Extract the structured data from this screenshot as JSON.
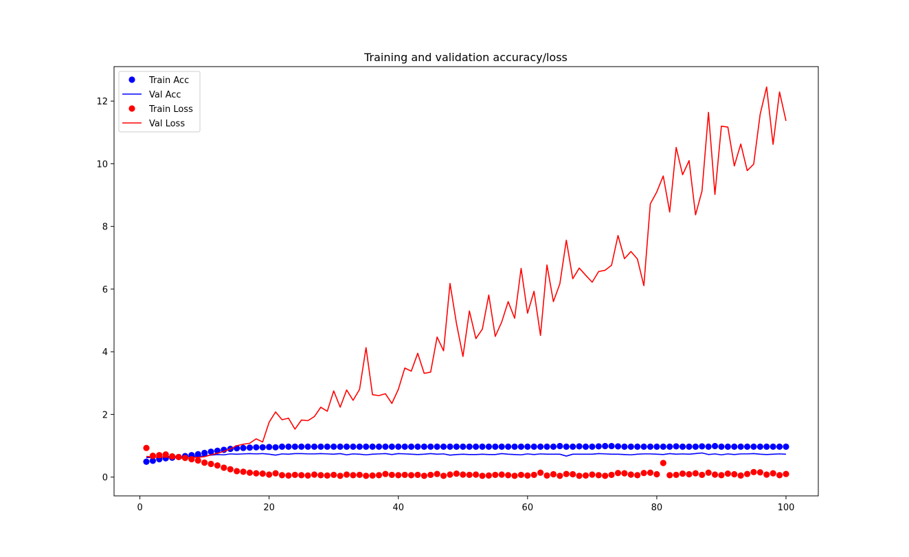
{
  "chart_data": {
    "type": "line",
    "title": "Training and validation accuracy/loss",
    "xlabel": "",
    "ylabel": "",
    "xlim": [
      -4,
      105
    ],
    "ylim": [
      -0.6,
      13.1
    ],
    "xticks": [
      0,
      20,
      40,
      60,
      80,
      100
    ],
    "yticks": [
      0,
      2,
      4,
      6,
      8,
      10,
      12
    ],
    "grid": false,
    "legend_position": "top-left",
    "colors": {
      "blue": "#0000ff",
      "red": "#ff0000"
    },
    "series": [
      {
        "name": "Train Acc",
        "style": "markers",
        "color": "#0000ff",
        "x": [
          1,
          2,
          3,
          4,
          5,
          6,
          7,
          8,
          9,
          10,
          11,
          12,
          13,
          14,
          15,
          16,
          17,
          18,
          19,
          20,
          21,
          22,
          23,
          24,
          25,
          26,
          27,
          28,
          29,
          30,
          31,
          32,
          33,
          34,
          35,
          36,
          37,
          38,
          39,
          40,
          41,
          42,
          43,
          44,
          45,
          46,
          47,
          48,
          49,
          50,
          51,
          52,
          53,
          54,
          55,
          56,
          57,
          58,
          59,
          60,
          61,
          62,
          63,
          64,
          65,
          66,
          67,
          68,
          69,
          70,
          71,
          72,
          73,
          74,
          75,
          76,
          77,
          78,
          79,
          80,
          81,
          82,
          83,
          84,
          85,
          86,
          87,
          88,
          89,
          90,
          91,
          92,
          93,
          94,
          95,
          96,
          97,
          98,
          99,
          100
        ],
        "y": [
          0.49,
          0.52,
          0.57,
          0.6,
          0.62,
          0.64,
          0.67,
          0.7,
          0.73,
          0.77,
          0.81,
          0.84,
          0.87,
          0.9,
          0.92,
          0.93,
          0.94,
          0.95,
          0.95,
          0.96,
          0.95,
          0.97,
          0.97,
          0.97,
          0.97,
          0.97,
          0.97,
          0.97,
          0.97,
          0.97,
          0.97,
          0.97,
          0.97,
          0.97,
          0.97,
          0.97,
          0.97,
          0.97,
          0.97,
          0.97,
          0.97,
          0.97,
          0.97,
          0.97,
          0.97,
          0.97,
          0.97,
          0.97,
          0.97,
          0.97,
          0.97,
          0.97,
          0.97,
          0.97,
          0.97,
          0.97,
          0.97,
          0.97,
          0.97,
          0.97,
          0.97,
          0.97,
          0.97,
          0.97,
          0.99,
          0.97,
          0.97,
          0.98,
          0.97,
          0.97,
          0.98,
          0.99,
          0.99,
          0.98,
          0.97,
          0.97,
          0.97,
          0.97,
          0.97,
          0.97,
          0.97,
          0.97,
          0.98,
          0.97,
          0.97,
          0.97,
          0.98,
          0.97,
          0.99,
          0.97,
          0.97,
          0.97,
          0.97,
          0.97,
          0.97,
          0.97,
          0.97,
          0.97,
          0.97,
          0.97
        ]
      },
      {
        "name": "Val Acc",
        "style": "line",
        "color": "#0000ff",
        "x": [
          1,
          2,
          3,
          4,
          5,
          6,
          7,
          8,
          9,
          10,
          11,
          12,
          13,
          14,
          15,
          16,
          17,
          18,
          19,
          20,
          21,
          22,
          23,
          24,
          25,
          26,
          27,
          28,
          29,
          30,
          31,
          32,
          33,
          34,
          35,
          36,
          37,
          38,
          39,
          40,
          41,
          42,
          43,
          44,
          45,
          46,
          47,
          48,
          49,
          50,
          51,
          52,
          53,
          54,
          55,
          56,
          57,
          58,
          59,
          60,
          61,
          62,
          63,
          64,
          65,
          66,
          67,
          68,
          69,
          70,
          71,
          72,
          73,
          74,
          75,
          76,
          77,
          78,
          79,
          80,
          81,
          82,
          83,
          84,
          85,
          86,
          87,
          88,
          89,
          90,
          91,
          92,
          93,
          94,
          95,
          96,
          97,
          98,
          99,
          100
        ],
        "y": [
          0.62,
          0.63,
          0.64,
          0.65,
          0.66,
          0.65,
          0.64,
          0.67,
          0.66,
          0.68,
          0.7,
          0.72,
          0.71,
          0.74,
          0.73,
          0.74,
          0.75,
          0.74,
          0.75,
          0.73,
          0.7,
          0.74,
          0.73,
          0.75,
          0.75,
          0.74,
          0.74,
          0.75,
          0.74,
          0.73,
          0.75,
          0.71,
          0.74,
          0.73,
          0.71,
          0.73,
          0.74,
          0.75,
          0.72,
          0.75,
          0.74,
          0.73,
          0.72,
          0.73,
          0.75,
          0.73,
          0.74,
          0.7,
          0.72,
          0.73,
          0.72,
          0.72,
          0.73,
          0.72,
          0.72,
          0.75,
          0.73,
          0.72,
          0.71,
          0.74,
          0.72,
          0.74,
          0.73,
          0.73,
          0.73,
          0.67,
          0.73,
          0.73,
          0.73,
          0.73,
          0.75,
          0.74,
          0.73,
          0.73,
          0.72,
          0.71,
          0.73,
          0.74,
          0.74,
          0.73,
          0.72,
          0.75,
          0.73,
          0.74,
          0.73,
          0.75,
          0.77,
          0.72,
          0.74,
          0.71,
          0.74,
          0.72,
          0.74,
          0.74,
          0.75,
          0.73,
          0.72,
          0.73,
          0.74,
          0.73
        ]
      },
      {
        "name": "Train Loss",
        "style": "markers",
        "color": "#ff0000",
        "x": [
          1,
          2,
          3,
          4,
          5,
          6,
          7,
          8,
          9,
          10,
          11,
          12,
          13,
          14,
          15,
          16,
          17,
          18,
          19,
          20,
          21,
          22,
          23,
          24,
          25,
          26,
          27,
          28,
          29,
          30,
          31,
          32,
          33,
          34,
          35,
          36,
          37,
          38,
          39,
          40,
          41,
          42,
          43,
          44,
          45,
          46,
          47,
          48,
          49,
          50,
          51,
          52,
          53,
          54,
          55,
          56,
          57,
          58,
          59,
          60,
          61,
          62,
          63,
          64,
          65,
          66,
          67,
          68,
          69,
          70,
          71,
          72,
          73,
          74,
          75,
          76,
          77,
          78,
          79,
          80,
          81,
          82,
          83,
          84,
          85,
          86,
          87,
          88,
          89,
          90,
          91,
          92,
          93,
          94,
          95,
          96,
          97,
          98,
          99,
          100
        ],
        "y": [
          0.93,
          0.68,
          0.7,
          0.72,
          0.66,
          0.64,
          0.61,
          0.57,
          0.53,
          0.46,
          0.42,
          0.37,
          0.3,
          0.25,
          0.19,
          0.17,
          0.14,
          0.12,
          0.11,
          0.08,
          0.12,
          0.06,
          0.05,
          0.07,
          0.06,
          0.05,
          0.08,
          0.06,
          0.05,
          0.07,
          0.04,
          0.08,
          0.06,
          0.07,
          0.04,
          0.05,
          0.06,
          0.1,
          0.07,
          0.06,
          0.07,
          0.06,
          0.07,
          0.04,
          0.07,
          0.1,
          0.04,
          0.08,
          0.11,
          0.08,
          0.07,
          0.08,
          0.04,
          0.05,
          0.07,
          0.08,
          0.06,
          0.04,
          0.07,
          0.05,
          0.07,
          0.14,
          0.05,
          0.09,
          0.04,
          0.1,
          0.09,
          0.04,
          0.05,
          0.08,
          0.06,
          0.04,
          0.07,
          0.13,
          0.12,
          0.08,
          0.06,
          0.13,
          0.14,
          0.09,
          0.45,
          0.06,
          0.07,
          0.11,
          0.09,
          0.12,
          0.07,
          0.14,
          0.08,
          0.06,
          0.11,
          0.09,
          0.05,
          0.1,
          0.16,
          0.15,
          0.08,
          0.12,
          0.06,
          0.1
        ]
      },
      {
        "name": "Val Loss",
        "style": "line",
        "color": "#ff0000",
        "x": [
          1,
          2,
          3,
          4,
          5,
          6,
          7,
          8,
          9,
          10,
          11,
          12,
          13,
          14,
          15,
          16,
          17,
          18,
          19,
          20,
          21,
          22,
          23,
          24,
          25,
          26,
          27,
          28,
          29,
          30,
          31,
          32,
          33,
          34,
          35,
          36,
          37,
          38,
          39,
          40,
          41,
          42,
          43,
          44,
          45,
          46,
          47,
          48,
          49,
          50,
          51,
          52,
          53,
          54,
          55,
          56,
          57,
          58,
          59,
          60,
          61,
          62,
          63,
          64,
          65,
          66,
          67,
          68,
          69,
          70,
          71,
          72,
          73,
          74,
          75,
          76,
          77,
          78,
          79,
          80,
          81,
          82,
          83,
          84,
          85,
          86,
          87,
          88,
          89,
          90,
          91,
          92,
          93,
          94,
          95,
          96,
          97,
          98,
          99,
          100
        ],
        "y": [
          0.66,
          0.64,
          0.63,
          0.64,
          0.62,
          0.61,
          0.6,
          0.62,
          0.63,
          0.65,
          0.71,
          0.76,
          0.82,
          0.9,
          1.0,
          1.05,
          1.08,
          1.22,
          1.12,
          1.75,
          2.08,
          1.83,
          1.88,
          1.53,
          1.82,
          1.8,
          1.93,
          2.23,
          2.1,
          2.75,
          2.23,
          2.78,
          2.45,
          2.8,
          4.13,
          2.63,
          2.6,
          2.66,
          2.35,
          2.8,
          3.48,
          3.38,
          3.95,
          3.31,
          3.35,
          4.47,
          4.03,
          6.18,
          4.9,
          3.85,
          5.3,
          4.42,
          4.72,
          5.81,
          4.49,
          4.95,
          5.6,
          5.07,
          6.66,
          5.23,
          5.93,
          4.52,
          6.77,
          5.6,
          6.17,
          7.56,
          6.33,
          6.67,
          6.44,
          6.22,
          6.56,
          6.6,
          6.76,
          7.71,
          6.97,
          7.2,
          6.96,
          6.11,
          8.72,
          9.1,
          9.61,
          8.46,
          10.52,
          9.65,
          10.1,
          8.37,
          9.13,
          11.64,
          9.02,
          11.2,
          11.17,
          9.93,
          10.63,
          9.78,
          9.99,
          11.58,
          12.45,
          10.62,
          12.29,
          11.37
        ]
      }
    ]
  }
}
